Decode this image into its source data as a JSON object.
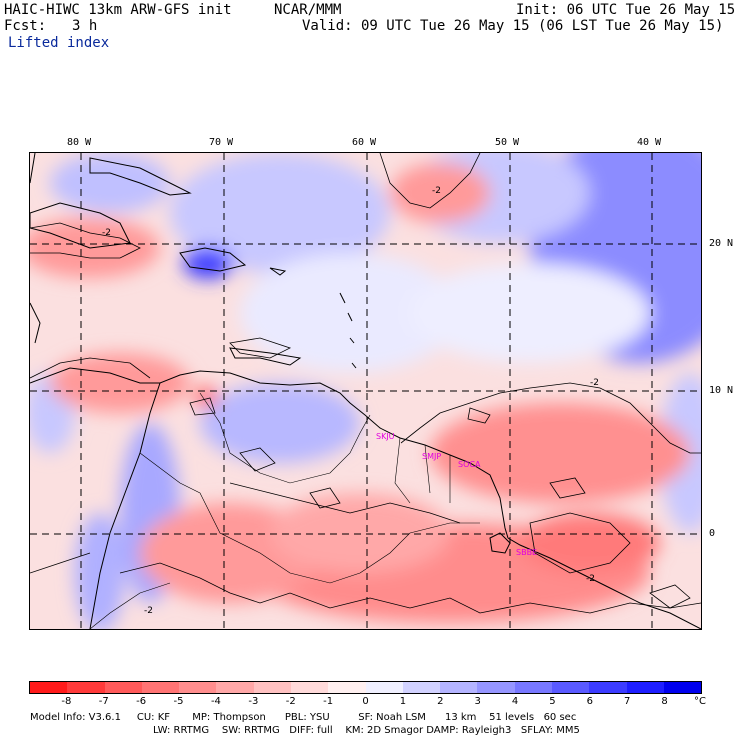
{
  "header": {
    "model": "HAIC-HIWC 13km ARW-GFS init",
    "center": "NCAR/MMM",
    "init": "Init: 06 UTC Tue 26 May 15",
    "fcst_label": "Fcst:",
    "fcst_value": "3 h",
    "valid": "Valid: 09 UTC Tue 26 May 15 (06 LST Tue 26 May 15)",
    "field": "Lifted index"
  },
  "map": {
    "lon_labels": [
      "80 W",
      "70 W",
      "60 W",
      "50 W",
      "40 W"
    ],
    "lat_labels": [
      "20 N",
      "10 N",
      "0"
    ],
    "stations": [
      "SKJU",
      "SMJP",
      "SOCA",
      "SBBE"
    ],
    "contour_labels": [
      "-2",
      "-2",
      "-2",
      "-2",
      "-2"
    ]
  },
  "colorbar": {
    "unit": "°C",
    "tick_labels": [
      "-8",
      "-7",
      "-6",
      "-5",
      "-4",
      "-3",
      "-2",
      "-1",
      "0",
      "1",
      "2",
      "3",
      "4",
      "5",
      "6",
      "7",
      "8"
    ],
    "colors": [
      "#ff1a1a",
      "#ff3a3a",
      "#ff5a5a",
      "#ff7474",
      "#ff8e8e",
      "#ffa8a8",
      "#ffc2c2",
      "#ffdada",
      "#fff0f0",
      "#f0f0ff",
      "#d2d2ff",
      "#b4b4ff",
      "#9696ff",
      "#7878ff",
      "#5a5aff",
      "#3c3cff",
      "#1e1eff",
      "#0000ee"
    ]
  },
  "model_info": {
    "line1": "Model Info: V3.6.1     CU: KF       MP: Thompson      PBL: YSU         SF: Noah LSM      13 km    51 levels   60 sec",
    "line2": "LW: RRTMG    SW: RRTMG   DIFF: full    KM: 2D Smagor DAMP: Rayleigh3   SFLAY: MM5"
  }
}
